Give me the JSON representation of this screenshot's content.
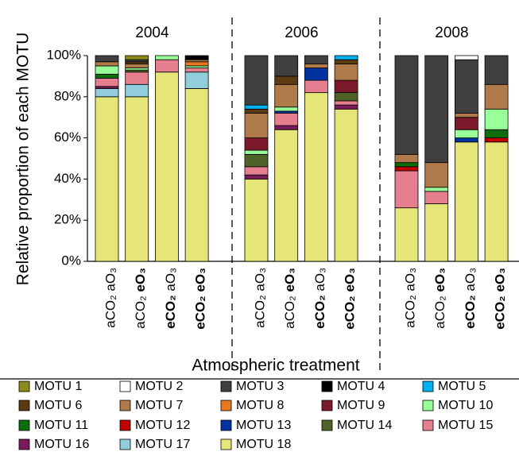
{
  "chart_data": {
    "type": "bar",
    "stacked": true,
    "ylabel": "Relative proportion of each MOTU",
    "xlabel": "Atmospheric treatment",
    "groups": [
      "2004",
      "2006",
      "2008"
    ],
    "categories": [
      "aCO₂ aO₃",
      "aCO₂ eO₃",
      "eCO₂ aO₃",
      "eCO₂ eO₃",
      "aCO₂ aO₃",
      "aCO₂ eO₃",
      "eCO₂ aO₃",
      "eCO₂ eO₃",
      "aCO₂ aO₃",
      "aCO₂ eO₃",
      "eCO₂ aO₃",
      "eCO₂ eO₃"
    ],
    "ylim": [
      0,
      100
    ],
    "yticks": [
      {
        "value": 0,
        "label": "0%"
      },
      {
        "value": 20,
        "label": "20%"
      },
      {
        "value": 40,
        "label": "40%"
      },
      {
        "value": 60,
        "label": "60%"
      },
      {
        "value": 80,
        "label": "80%"
      },
      {
        "value": 100,
        "label": "100%"
      }
    ],
    "series": [
      {
        "name": "MOTU 18",
        "color": "#e5e57a",
        "values": [
          80,
          80,
          92,
          84,
          40,
          64,
          82,
          74,
          26,
          28,
          58,
          58
        ]
      },
      {
        "name": "MOTU 17",
        "color": "#92cddc",
        "values": [
          4,
          6,
          null,
          8,
          null,
          null,
          null,
          null,
          null,
          null,
          null,
          null
        ]
      },
      {
        "name": "MOTU 16",
        "color": "#7b1a5a",
        "values": [
          1,
          null,
          null,
          null,
          2,
          2,
          null,
          2,
          null,
          null,
          null,
          null
        ]
      },
      {
        "name": "MOTU 15",
        "color": "#e57f8f",
        "values": [
          4,
          6,
          6,
          2,
          4,
          6,
          6,
          2,
          18,
          6,
          null,
          null
        ]
      },
      {
        "name": "MOTU 14",
        "color": "#4f6228",
        "values": [
          null,
          1,
          null,
          null,
          6,
          null,
          null,
          4,
          null,
          null,
          null,
          null
        ]
      },
      {
        "name": "MOTU 13",
        "color": "#0033a0",
        "values": [
          null,
          null,
          null,
          null,
          null,
          1,
          6,
          null,
          null,
          null,
          2,
          null
        ]
      },
      {
        "name": "MOTU 12",
        "color": "#c00000",
        "values": [
          null,
          null,
          null,
          null,
          null,
          null,
          null,
          null,
          2,
          null,
          null,
          2
        ]
      },
      {
        "name": "MOTU 11",
        "color": "#0a6e0a",
        "values": [
          2,
          null,
          null,
          null,
          null,
          null,
          null,
          null,
          2,
          null,
          null,
          4
        ]
      },
      {
        "name": "MOTU 10",
        "color": "#99ff99",
        "values": [
          4,
          1,
          2,
          1,
          2,
          2,
          null,
          null,
          null,
          2,
          4,
          10
        ]
      },
      {
        "name": "MOTU 9",
        "color": "#7b1a2a",
        "values": [
          null,
          null,
          null,
          null,
          6,
          null,
          null,
          6,
          null,
          null,
          6,
          null
        ]
      },
      {
        "name": "MOTU 8",
        "color": "#e87722",
        "values": [
          null,
          null,
          null,
          2,
          null,
          null,
          null,
          null,
          null,
          null,
          null,
          null
        ]
      },
      {
        "name": "MOTU 7",
        "color": "#b07a4a",
        "values": [
          2,
          2,
          null,
          1,
          12,
          11,
          2,
          8,
          4,
          12,
          2,
          12
        ]
      },
      {
        "name": "MOTU 6",
        "color": "#5c3a12",
        "values": [
          null,
          1,
          null,
          null,
          2,
          4,
          null,
          2,
          null,
          null,
          null,
          null
        ]
      },
      {
        "name": "MOTU 5",
        "color": "#00b0f0",
        "values": [
          null,
          null,
          null,
          null,
          2,
          null,
          null,
          2,
          null,
          null,
          null,
          null
        ]
      },
      {
        "name": "MOTU 4",
        "color": "#000000",
        "values": [
          null,
          null,
          null,
          2,
          null,
          null,
          null,
          null,
          null,
          null,
          null,
          null
        ]
      },
      {
        "name": "MOTU 3",
        "color": "#404040",
        "values": [
          3,
          1,
          null,
          null,
          24,
          10,
          4,
          null,
          48,
          52,
          26,
          14
        ]
      },
      {
        "name": "MOTU 2",
        "color": "#ffffff",
        "values": [
          null,
          null,
          null,
          null,
          null,
          null,
          null,
          null,
          null,
          null,
          2,
          null
        ]
      },
      {
        "name": "MOTU 1",
        "color": "#8b8b1a",
        "values": [
          null,
          2,
          null,
          null,
          null,
          null,
          null,
          null,
          null,
          null,
          null,
          null
        ]
      }
    ]
  }
}
